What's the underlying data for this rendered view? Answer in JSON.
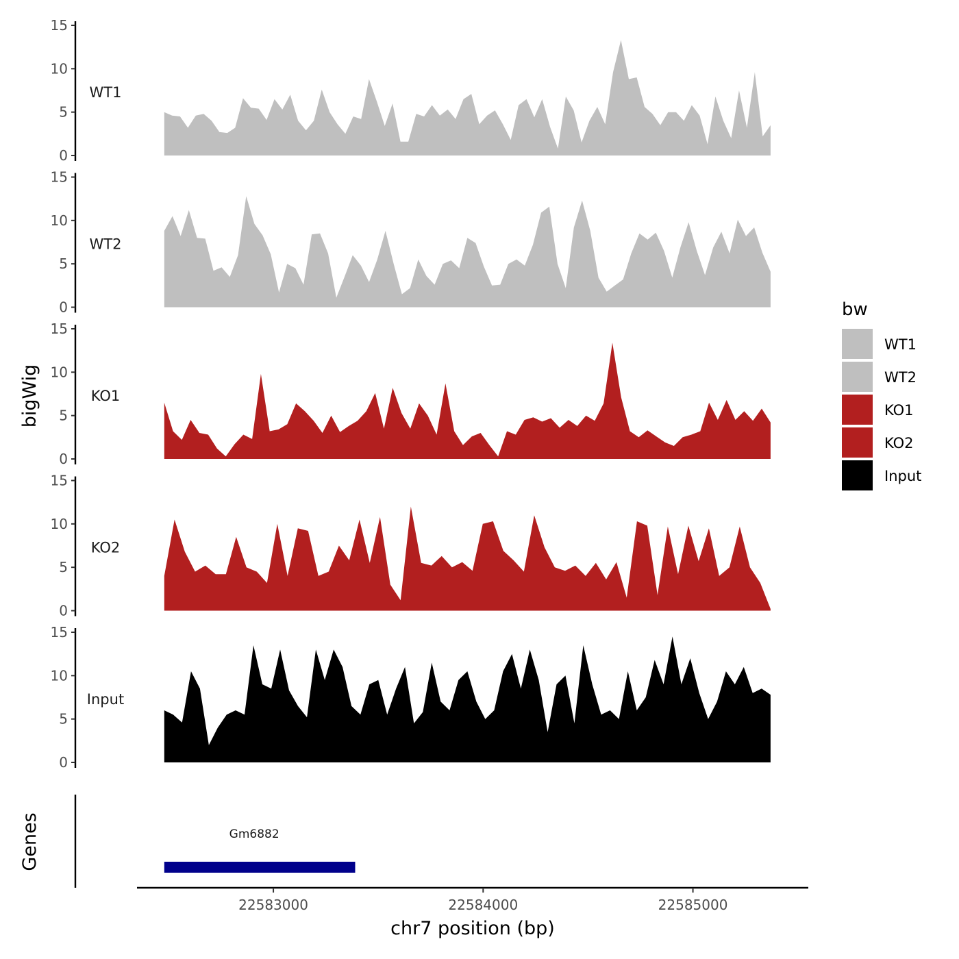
{
  "chart_data": {
    "type": "area",
    "title": "",
    "xlabel": "chr7 position (bp)",
    "ylabel": "bigWig",
    "genes_label": "Genes",
    "xlim": [
      22582350,
      22585550
    ],
    "x_range_data": [
      22582480,
      22585370
    ],
    "ylim": [
      0,
      15
    ],
    "yticks": [
      0,
      5,
      10,
      15
    ],
    "xticks": [
      22583000,
      22584000,
      22585000
    ],
    "xtick_labels": [
      "22583000",
      "22584000",
      "22585000"
    ],
    "legend": {
      "title": "bw",
      "placement": "right",
      "entries": [
        {
          "label": "WT1",
          "color": "#bfbfbf"
        },
        {
          "label": "WT2",
          "color": "#bfbfbf"
        },
        {
          "label": "KO1",
          "color": "#b21f1f"
        },
        {
          "label": "KO2",
          "color": "#b21f1f"
        },
        {
          "label": "Input",
          "color": "#000000"
        }
      ]
    },
    "series": [
      {
        "name": "WT1",
        "color": "#bfbfbf",
        "values": [
          5.0,
          4.6,
          4.5,
          3.2,
          4.6,
          4.8,
          4.0,
          2.7,
          2.6,
          3.2,
          6.6,
          5.5,
          5.4,
          4.1,
          6.5,
          5.3,
          7.0,
          4.0,
          2.9,
          4.0,
          7.6,
          5.0,
          3.6,
          2.5,
          4.5,
          4.2,
          8.8,
          6.2,
          3.4,
          6.0,
          1.6,
          1.6,
          4.8,
          4.5,
          5.8,
          4.6,
          5.3,
          4.2,
          6.5,
          7.1,
          3.6,
          4.6,
          5.2,
          3.6,
          1.8,
          5.8,
          6.5,
          4.4,
          6.5,
          3.3,
          0.8,
          6.8,
          5.2,
          1.5,
          4.0,
          5.6,
          3.6,
          9.6,
          13.3,
          8.8,
          9.0,
          5.6,
          4.8,
          3.5,
          5.0,
          5.0,
          4.0,
          5.8,
          4.6,
          1.3,
          6.8,
          4.0,
          2.0,
          7.5,
          3.2,
          9.6,
          2.2,
          3.5
        ]
      },
      {
        "name": "WT2",
        "color": "#bfbfbf",
        "values": [
          8.8,
          10.5,
          8.2,
          11.2,
          8.0,
          7.9,
          4.2,
          4.6,
          3.5,
          6.0,
          12.8,
          9.6,
          8.3,
          6.1,
          1.7,
          5.0,
          4.5,
          2.6,
          8.4,
          8.5,
          6.2,
          1.1,
          3.5,
          6.0,
          4.8,
          2.9,
          5.5,
          8.8,
          5.0,
          1.5,
          2.2,
          5.5,
          3.6,
          2.6,
          5.0,
          5.4,
          4.5,
          8.0,
          7.4,
          4.7,
          2.5,
          2.6,
          5.0,
          5.5,
          4.8,
          7.2,
          10.9,
          11.6,
          5.0,
          2.2,
          9.2,
          12.3,
          8.8,
          3.4,
          1.8,
          2.5,
          3.2,
          6.2,
          8.5,
          7.8,
          8.6,
          6.5,
          3.4,
          6.9,
          9.8,
          6.5,
          3.7,
          6.9,
          8.7,
          6.2,
          10.1,
          8.2,
          9.2,
          6.3,
          4.1
        ]
      },
      {
        "name": "KO1",
        "color": "#b21f1f",
        "values": [
          6.5,
          3.2,
          2.2,
          4.5,
          3.0,
          2.8,
          1.2,
          0.3,
          1.7,
          2.8,
          2.3,
          9.8,
          3.2,
          3.4,
          4.0,
          6.4,
          5.5,
          4.4,
          3.0,
          5.0,
          3.1,
          3.8,
          4.4,
          5.5,
          7.6,
          3.5,
          8.2,
          5.3,
          3.5,
          6.4,
          5.0,
          2.8,
          8.7,
          3.2,
          1.6,
          2.6,
          3.0,
          1.6,
          0.3,
          3.2,
          2.8,
          4.5,
          4.8,
          4.3,
          4.7,
          3.6,
          4.5,
          3.8,
          5.0,
          4.4,
          6.4,
          13.4,
          7.1,
          3.2,
          2.5,
          3.3,
          2.6,
          1.9,
          1.5,
          2.5,
          2.8,
          3.2,
          6.5,
          4.5,
          6.8,
          4.5,
          5.5,
          4.4,
          5.8,
          4.2
        ]
      },
      {
        "name": "KO2",
        "color": "#b21f1f",
        "values": [
          4.0,
          10.5,
          6.8,
          4.5,
          5.2,
          4.2,
          4.2,
          8.5,
          5.0,
          4.5,
          3.2,
          10.0,
          4.0,
          9.5,
          9.2,
          4.0,
          4.5,
          7.5,
          5.8,
          10.5,
          5.5,
          10.8,
          3.0,
          1.2,
          12.0,
          5.5,
          5.2,
          6.3,
          5.0,
          5.6,
          4.6,
          10.0,
          10.3,
          6.9,
          5.8,
          4.5,
          11.0,
          7.3,
          5.0,
          4.6,
          5.2,
          4.0,
          5.5,
          3.6,
          5.6,
          1.5,
          10.3,
          9.8,
          1.8,
          9.7,
          4.2,
          9.8,
          5.7,
          9.5,
          4.0,
          5.0,
          9.7,
          5.0,
          3.2,
          0.2
        ]
      },
      {
        "name": "Input",
        "color": "#000000",
        "values": [
          6.0,
          5.5,
          4.6,
          10.5,
          8.5,
          2.0,
          4.0,
          5.5,
          6.0,
          5.5,
          13.5,
          9.0,
          8.5,
          13.0,
          8.3,
          6.5,
          5.2,
          13.0,
          9.5,
          13.0,
          11.0,
          6.5,
          5.5,
          9.0,
          9.5,
          5.5,
          8.5,
          11.0,
          4.5,
          5.8,
          11.5,
          7.0,
          6.0,
          9.5,
          10.5,
          7.0,
          5.0,
          6.0,
          10.5,
          12.5,
          8.5,
          13.0,
          9.5,
          3.5,
          9.0,
          10.0,
          4.5,
          13.5,
          9.0,
          5.5,
          6.0,
          5.0,
          10.5,
          6.0,
          7.5,
          11.8,
          9.0,
          14.5,
          9.0,
          12.0,
          8.0,
          5.0,
          7.0,
          10.5,
          9.0,
          11.0,
          8.0,
          8.5,
          7.8
        ]
      }
    ],
    "genes": [
      {
        "name": "Gm6882",
        "start": 22582480,
        "end": 22583390,
        "color": "#00008b"
      }
    ]
  }
}
